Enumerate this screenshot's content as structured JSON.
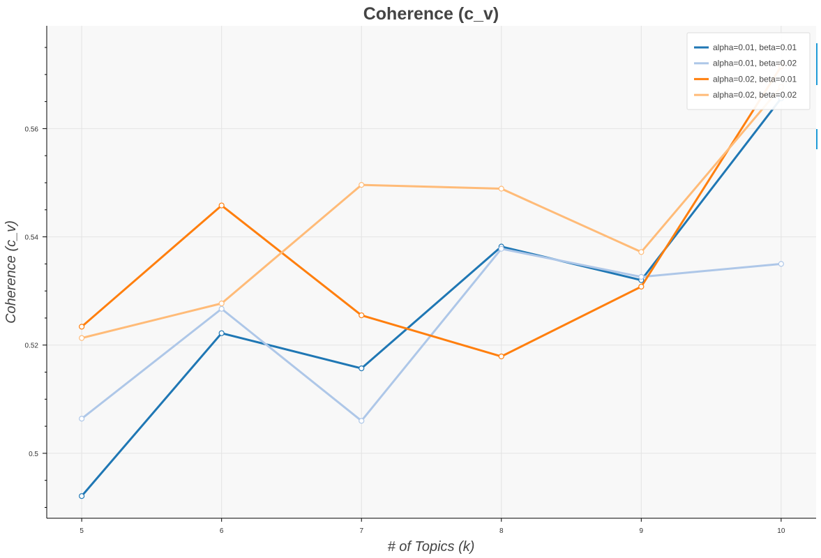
{
  "chart_data": {
    "type": "line",
    "title": "Coherence (c_v)",
    "xlabel": "# of Topics (k)",
    "ylabel": "Coherence (c_v)",
    "x": [
      5,
      6,
      7,
      8,
      9,
      10
    ],
    "xticks": [
      "5",
      "6",
      "7",
      "8",
      "9",
      "10"
    ],
    "yticks": [
      "0.5",
      "0.52",
      "0.54",
      "0.56"
    ],
    "xlim": [
      4.75,
      10.25
    ],
    "ylim": [
      0.488,
      0.579
    ],
    "grid": true,
    "legend_position": "top-right",
    "series": [
      {
        "name": "alpha=0.01, beta=0.01",
        "color": "#1f77b4",
        "values": [
          0.4921,
          0.5222,
          0.5157,
          0.5382,
          0.532,
          0.5656
        ]
      },
      {
        "name": "alpha=0.01, beta=0.02",
        "color": "#aec7e8",
        "values": [
          0.5064,
          0.5267,
          0.506,
          0.5378,
          0.5326,
          0.535
        ]
      },
      {
        "name": "alpha=0.02, beta=0.01",
        "color": "#ff7f0e",
        "values": [
          0.5234,
          0.5458,
          0.5255,
          0.5179,
          0.5308,
          0.5715
        ]
      },
      {
        "name": "alpha=0.02, beta=0.02",
        "color": "#ffbb78",
        "values": [
          0.5213,
          0.5277,
          0.5496,
          0.5489,
          0.5372,
          0.5677
        ]
      }
    ]
  }
}
